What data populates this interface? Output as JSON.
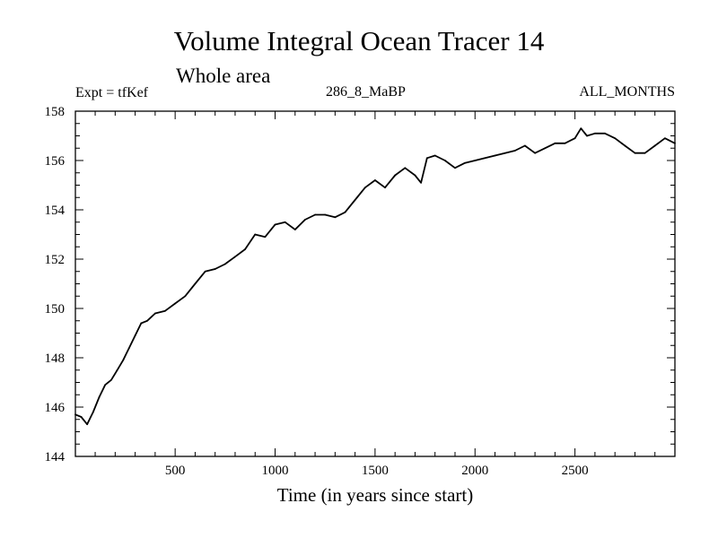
{
  "header": {
    "title": "Volume Integral Ocean Tracer 14",
    "subtitle": "Whole area",
    "expt": "Expt = tfKef",
    "run": "286_8_MaBP",
    "months": "ALL_MONTHS"
  },
  "chart_data": {
    "type": "line",
    "title": "Volume Integral Ocean Tracer 14",
    "subtitle": "Whole area",
    "xlabel": "Time (in years since start)",
    "ylabel": "",
    "xlim": [
      1,
      3000
    ],
    "ylim": [
      144,
      158
    ],
    "x_ticks": [
      500,
      1000,
      1500,
      2000,
      2500
    ],
    "y_ticks": [
      144,
      146,
      148,
      150,
      152,
      154,
      156,
      158
    ],
    "grid": false,
    "series": [
      {
        "color": "#000000",
        "points": [
          [
            1,
            145.7
          ],
          [
            30,
            145.6
          ],
          [
            60,
            145.3
          ],
          [
            90,
            145.8
          ],
          [
            120,
            146.4
          ],
          [
            150,
            146.9
          ],
          [
            180,
            147.1
          ],
          [
            210,
            147.5
          ],
          [
            240,
            147.9
          ],
          [
            270,
            148.4
          ],
          [
            300,
            148.9
          ],
          [
            330,
            149.4
          ],
          [
            360,
            149.5
          ],
          [
            400,
            149.8
          ],
          [
            450,
            149.9
          ],
          [
            500,
            150.2
          ],
          [
            550,
            150.5
          ],
          [
            600,
            151.0
          ],
          [
            650,
            151.5
          ],
          [
            700,
            151.6
          ],
          [
            750,
            151.8
          ],
          [
            800,
            152.1
          ],
          [
            850,
            152.4
          ],
          [
            900,
            153.0
          ],
          [
            950,
            152.9
          ],
          [
            1000,
            153.4
          ],
          [
            1050,
            153.5
          ],
          [
            1100,
            153.2
          ],
          [
            1150,
            153.6
          ],
          [
            1200,
            153.8
          ],
          [
            1250,
            153.8
          ],
          [
            1300,
            153.7
          ],
          [
            1350,
            153.9
          ],
          [
            1400,
            154.4
          ],
          [
            1450,
            154.9
          ],
          [
            1500,
            155.2
          ],
          [
            1550,
            154.9
          ],
          [
            1600,
            155.4
          ],
          [
            1650,
            155.7
          ],
          [
            1700,
            155.4
          ],
          [
            1730,
            155.1
          ],
          [
            1760,
            156.1
          ],
          [
            1800,
            156.2
          ],
          [
            1850,
            156.0
          ],
          [
            1900,
            155.7
          ],
          [
            1950,
            155.9
          ],
          [
            2000,
            156.0
          ],
          [
            2050,
            156.1
          ],
          [
            2100,
            156.2
          ],
          [
            2150,
            156.3
          ],
          [
            2200,
            156.4
          ],
          [
            2250,
            156.6
          ],
          [
            2300,
            156.3
          ],
          [
            2350,
            156.5
          ],
          [
            2400,
            156.7
          ],
          [
            2450,
            156.7
          ],
          [
            2500,
            156.9
          ],
          [
            2530,
            157.3
          ],
          [
            2560,
            157.0
          ],
          [
            2600,
            157.1
          ],
          [
            2650,
            157.1
          ],
          [
            2700,
            156.9
          ],
          [
            2750,
            156.6
          ],
          [
            2800,
            156.3
          ],
          [
            2850,
            156.3
          ],
          [
            2900,
            156.6
          ],
          [
            2950,
            156.9
          ],
          [
            3000,
            156.7
          ]
        ]
      }
    ]
  }
}
